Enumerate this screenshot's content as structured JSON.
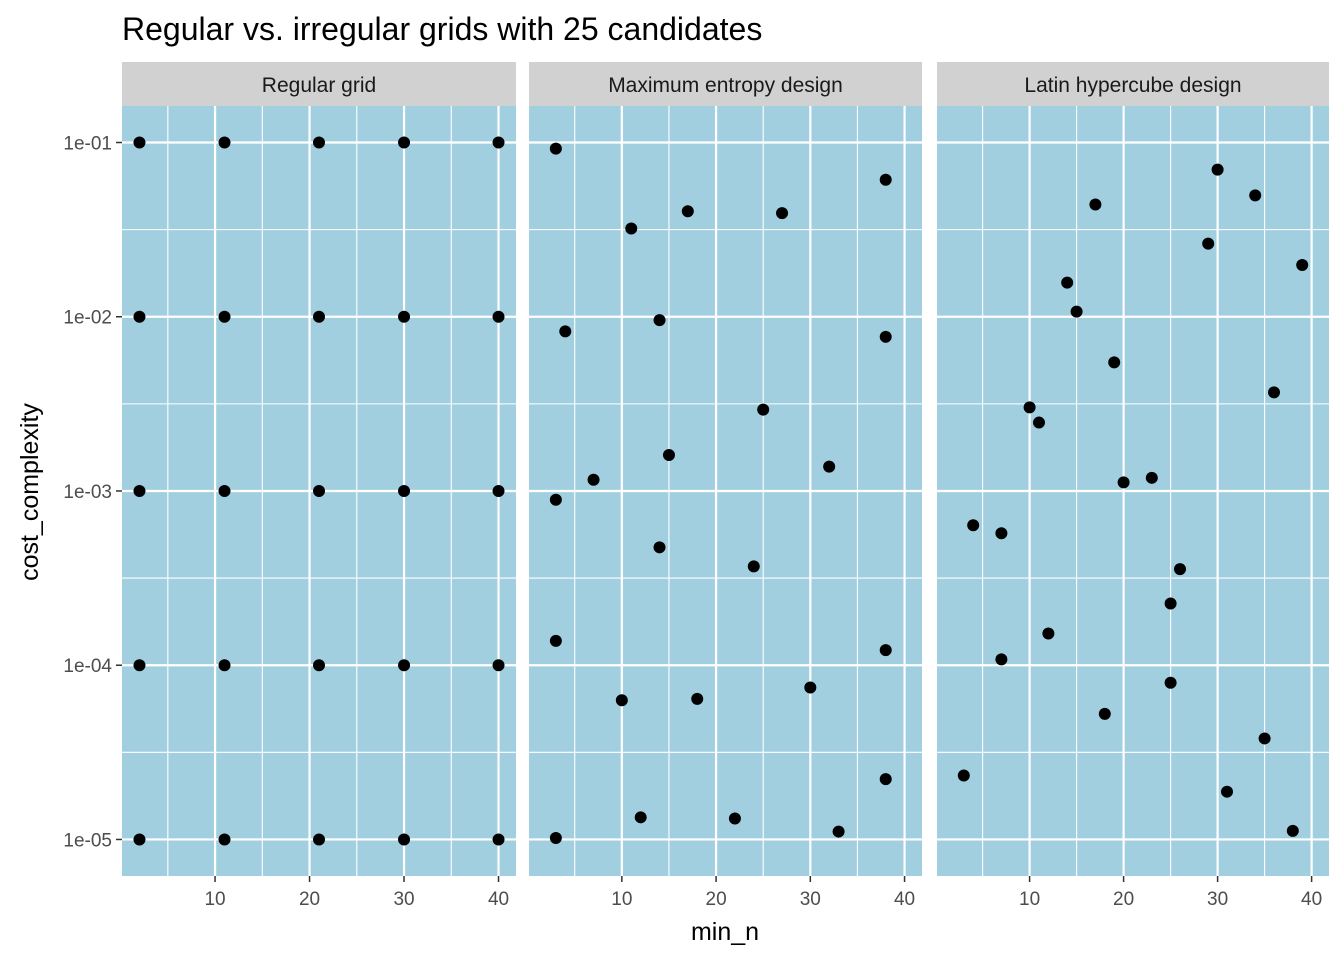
{
  "chart_data": {
    "type": "scatter",
    "title": "Regular vs. irregular grids with 25 candidates",
    "xlabel": "min_n",
    "ylabel": "cost_complexity",
    "x_scale": "linear",
    "y_scale": "log10",
    "xlim": [
      0.15,
      41.85
    ],
    "ylim": [
      6.17e-06,
      0.162
    ],
    "x_ticks": [
      10,
      20,
      30,
      40
    ],
    "x_tick_labels": [
      "10",
      "20",
      "30",
      "40"
    ],
    "y_ticks": [
      1e-05,
      0.0001,
      0.001,
      0.01,
      0.1
    ],
    "y_tick_labels": [
      "1e-05",
      "1e-04",
      "1e-03",
      "1e-02",
      "1e-01"
    ],
    "grid": true,
    "panel_background": "#a2cfe0",
    "strip_background": "#d1d1d1",
    "point_color": "#000000",
    "panels": [
      {
        "label": "Regular grid",
        "points": [
          {
            "x": 2,
            "y": 0.1
          },
          {
            "x": 11,
            "y": 0.1
          },
          {
            "x": 21,
            "y": 0.1
          },
          {
            "x": 30,
            "y": 0.1
          },
          {
            "x": 40,
            "y": 0.1
          },
          {
            "x": 2,
            "y": 0.01
          },
          {
            "x": 11,
            "y": 0.01
          },
          {
            "x": 21,
            "y": 0.01
          },
          {
            "x": 30,
            "y": 0.01
          },
          {
            "x": 40,
            "y": 0.01
          },
          {
            "x": 2,
            "y": 0.001
          },
          {
            "x": 11,
            "y": 0.001
          },
          {
            "x": 21,
            "y": 0.001
          },
          {
            "x": 30,
            "y": 0.001
          },
          {
            "x": 40,
            "y": 0.001
          },
          {
            "x": 2,
            "y": 0.0001
          },
          {
            "x": 11,
            "y": 0.0001
          },
          {
            "x": 21,
            "y": 0.0001
          },
          {
            "x": 30,
            "y": 0.0001
          },
          {
            "x": 40,
            "y": 0.0001
          },
          {
            "x": 2,
            "y": 1e-05
          },
          {
            "x": 11,
            "y": 1e-05
          },
          {
            "x": 21,
            "y": 1e-05
          },
          {
            "x": 30,
            "y": 1e-05
          },
          {
            "x": 40,
            "y": 1e-05
          }
        ]
      },
      {
        "label": "Maximum entropy design",
        "points": [
          {
            "x": 3,
            "y": 0.0922
          },
          {
            "x": 38,
            "y": 0.0611
          },
          {
            "x": 17,
            "y": 0.0403
          },
          {
            "x": 27,
            "y": 0.0393
          },
          {
            "x": 11,
            "y": 0.0321
          },
          {
            "x": 14,
            "y": 0.00956
          },
          {
            "x": 4,
            "y": 0.00824
          },
          {
            "x": 38,
            "y": 0.00767
          },
          {
            "x": 25,
            "y": 0.00293
          },
          {
            "x": 15,
            "y": 0.00161
          },
          {
            "x": 32,
            "y": 0.00138
          },
          {
            "x": 7,
            "y": 0.00116
          },
          {
            "x": 3,
            "y": 0.000891
          },
          {
            "x": 14,
            "y": 0.000475
          },
          {
            "x": 24,
            "y": 0.000369
          },
          {
            "x": 3,
            "y": 0.000138
          },
          {
            "x": 38,
            "y": 0.000122
          },
          {
            "x": 30,
            "y": 7.45e-05
          },
          {
            "x": 18,
            "y": 6.41e-05
          },
          {
            "x": 10,
            "y": 6.29e-05
          },
          {
            "x": 38,
            "y": 2.22e-05
          },
          {
            "x": 12,
            "y": 1.34e-05
          },
          {
            "x": 22,
            "y": 1.32e-05
          },
          {
            "x": 33,
            "y": 1.11e-05
          },
          {
            "x": 3,
            "y": 1.02e-05
          }
        ]
      },
      {
        "label": "Latin hypercube design",
        "points": [
          {
            "x": 30,
            "y": 0.0699
          },
          {
            "x": 34,
            "y": 0.0497
          },
          {
            "x": 17,
            "y": 0.0441
          },
          {
            "x": 29,
            "y": 0.0263
          },
          {
            "x": 39,
            "y": 0.0198
          },
          {
            "x": 14,
            "y": 0.0157
          },
          {
            "x": 15,
            "y": 0.0107
          },
          {
            "x": 19,
            "y": 0.00547
          },
          {
            "x": 36,
            "y": 0.00368
          },
          {
            "x": 10,
            "y": 0.00302
          },
          {
            "x": 11,
            "y": 0.00247
          },
          {
            "x": 23,
            "y": 0.00119
          },
          {
            "x": 20,
            "y": 0.00112
          },
          {
            "x": 4,
            "y": 0.000636
          },
          {
            "x": 7,
            "y": 0.000572
          },
          {
            "x": 26,
            "y": 0.000356
          },
          {
            "x": 25,
            "y": 0.000226
          },
          {
            "x": 12,
            "y": 0.000152
          },
          {
            "x": 7,
            "y": 0.000108
          },
          {
            "x": 25,
            "y": 7.93e-05
          },
          {
            "x": 18,
            "y": 5.26e-05
          },
          {
            "x": 35,
            "y": 3.8e-05
          },
          {
            "x": 3,
            "y": 2.33e-05
          },
          {
            "x": 31,
            "y": 1.88e-05
          },
          {
            "x": 38,
            "y": 1.12e-05
          }
        ]
      }
    ]
  }
}
